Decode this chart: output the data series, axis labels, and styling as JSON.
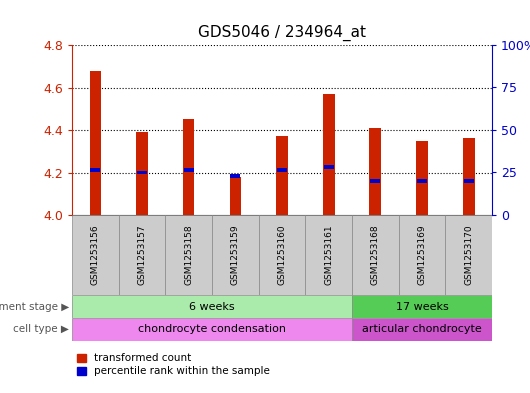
{
  "title": "GDS5046 / 234964_at",
  "samples": [
    "GSM1253156",
    "GSM1253157",
    "GSM1253158",
    "GSM1253159",
    "GSM1253160",
    "GSM1253161",
    "GSM1253168",
    "GSM1253169",
    "GSM1253170"
  ],
  "transformed_count": [
    4.68,
    4.39,
    4.45,
    4.18,
    4.37,
    4.57,
    4.41,
    4.35,
    4.36
  ],
  "percentile_rank": [
    4.21,
    4.2,
    4.21,
    4.185,
    4.21,
    4.225,
    4.16,
    4.16,
    4.16
  ],
  "ylim": [
    4.0,
    4.8
  ],
  "yticks": [
    4.0,
    4.2,
    4.4,
    4.6,
    4.8
  ],
  "right_yticks_pct": [
    0,
    25,
    50,
    75,
    100
  ],
  "bar_color": "#cc2200",
  "blue_color": "#0000cc",
  "bar_bottom": 4.0,
  "dev_stage_groups": [
    {
      "label": "6 weeks",
      "start": 0,
      "end": 6,
      "color": "#aaeaaa"
    },
    {
      "label": "17 weeks",
      "start": 6,
      "end": 9,
      "color": "#55cc55"
    }
  ],
  "cell_type_groups": [
    {
      "label": "chondrocyte condensation",
      "start": 0,
      "end": 6,
      "color": "#ee88ee"
    },
    {
      "label": "articular chondrocyte",
      "start": 6,
      "end": 9,
      "color": "#cc55cc"
    }
  ],
  "dev_stage_label": "development stage",
  "cell_type_label": "cell type",
  "legend_tc": "transformed count",
  "legend_pr": "percentile rank within the sample",
  "left_axis_color": "#cc2200",
  "right_axis_color": "#0000cc",
  "fig_width": 5.3,
  "fig_height": 3.93,
  "dpi": 100
}
